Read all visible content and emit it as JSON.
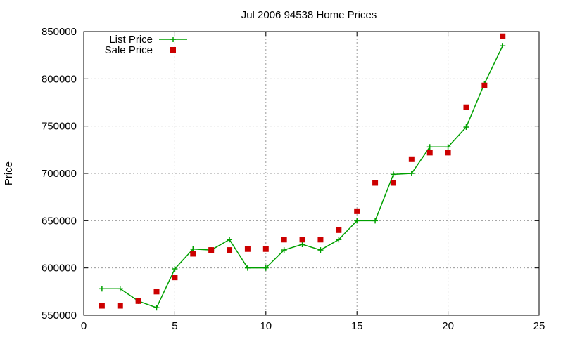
{
  "chart_data": {
    "type": "line",
    "title": "Jul 2006 94538 Home Prices",
    "xlabel": "",
    "ylabel": "Price",
    "xlim": [
      0,
      25
    ],
    "ylim": [
      550000,
      850000
    ],
    "xticks": [
      "0",
      "5",
      "10",
      "15",
      "20",
      "25"
    ],
    "yticks": [
      "550000",
      "600000",
      "650000",
      "700000",
      "750000",
      "800000",
      "850000"
    ],
    "grid": true,
    "legend_position": "top-left",
    "x": [
      1,
      2,
      3,
      4,
      5,
      6,
      7,
      8,
      9,
      10,
      11,
      12,
      13,
      14,
      15,
      16,
      17,
      18,
      19,
      20,
      21,
      22,
      23
    ],
    "series": [
      {
        "name": "List Price",
        "style": "line-points",
        "color": "#00a000",
        "values": [
          578000,
          578000,
          565000,
          558000,
          599000,
          620000,
          619000,
          630000,
          600000,
          600000,
          619000,
          625000,
          619000,
          630000,
          650000,
          650000,
          699000,
          700000,
          728000,
          728000,
          749000,
          795000,
          835000
        ]
      },
      {
        "name": "Sale Price",
        "style": "points",
        "color": "#cc0000",
        "values": [
          560000,
          560000,
          565000,
          575000,
          590000,
          615000,
          619000,
          619000,
          620000,
          620000,
          630000,
          630000,
          630000,
          640000,
          660000,
          690000,
          690000,
          715000,
          722000,
          722000,
          770000,
          793000,
          845000
        ]
      }
    ]
  }
}
